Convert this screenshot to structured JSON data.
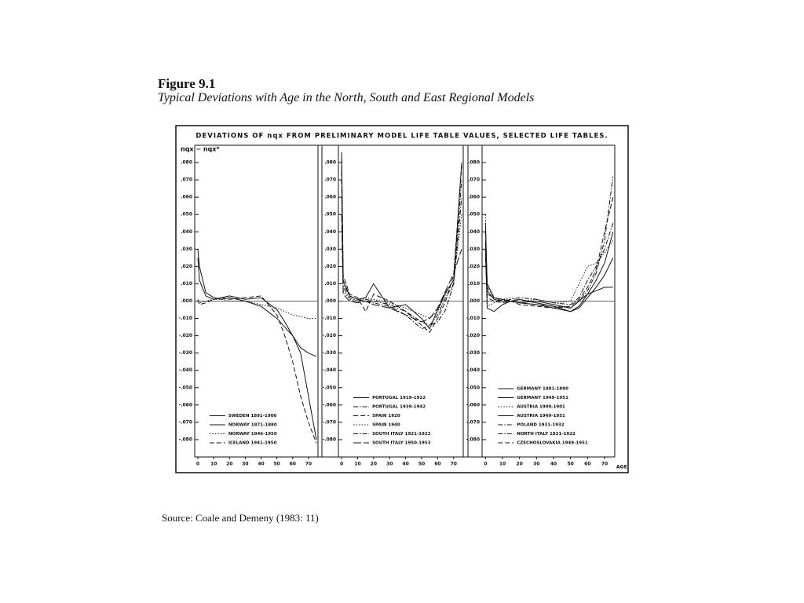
{
  "header": {
    "figure": "Figure 9.1",
    "caption": "Typical Deviations with Age in the North, South and East Regional Models"
  },
  "source": "Source:  Coale and Demeny (1983: 11)",
  "chart_data": [
    {
      "type": "line",
      "title": "DEVIATIONS OF nqx FROM PRELIMINARY MODEL LIFE TABLE VALUES, SELECTED LIFE TABLES.",
      "y_label": "nqx − nqx*",
      "x": [
        0,
        1,
        5,
        10,
        15,
        20,
        30,
        40,
        50,
        55,
        60,
        65,
        70,
        75
      ],
      "xlim": [
        -2,
        76
      ],
      "xticks": [
        0,
        10,
        20,
        30,
        40,
        50,
        60,
        70
      ],
      "ylim": [
        -0.09,
        0.09
      ],
      "yticks": [
        {
          "value": 0.08,
          "label": ".080"
        },
        {
          "value": 0.07,
          "label": ".070"
        },
        {
          "value": 0.06,
          "label": ".060"
        },
        {
          "value": 0.05,
          "label": ".050"
        },
        {
          "value": 0.04,
          "label": ".040"
        },
        {
          "value": 0.03,
          "label": ".030"
        },
        {
          "value": 0.02,
          "label": ".020"
        },
        {
          "value": 0.01,
          "label": ".010"
        },
        {
          "value": 0,
          "label": ".000"
        },
        {
          "value": -0.01,
          "label": "-.010"
        },
        {
          "value": -0.02,
          "label": "-.020"
        },
        {
          "value": -0.03,
          "label": "-.030"
        },
        {
          "value": -0.04,
          "label": "-.040"
        },
        {
          "value": -0.05,
          "label": "-.050"
        },
        {
          "value": -0.06,
          "label": "-.060"
        },
        {
          "value": -0.07,
          "label": "-.070"
        },
        {
          "value": -0.08,
          "label": "-.080"
        }
      ],
      "legend": "lower center",
      "series": [
        {
          "name": "SWEDEN 1891-1900",
          "color": "#111",
          "dash": "solid",
          "values": [
            0.03,
            0.02,
            0.005,
            0.002,
            0.001,
            0.002,
            0.0,
            -0.003,
            -0.01,
            -0.015,
            -0.02,
            -0.027,
            -0.03,
            -0.032
          ]
        },
        {
          "name": "NORWAY 1871-1880",
          "color": "#111",
          "dash": "solid",
          "values": [
            0.025,
            0.012,
            0.003,
            0.001,
            0.002,
            0.003,
            0.001,
            0.002,
            -0.005,
            -0.012,
            -0.02,
            -0.03,
            -0.055,
            -0.08
          ]
        },
        {
          "name": "NORWAY 1946-1950",
          "color": "#111",
          "dash": "dotted",
          "values": [
            0.0,
            -0.001,
            0.0,
            0.001,
            0.001,
            0.0,
            0.0,
            -0.002,
            -0.004,
            -0.006,
            -0.008,
            -0.009,
            -0.01,
            -0.01
          ]
        },
        {
          "name": "ICELAND 1941-1950",
          "color": "#111",
          "dash": "dashed",
          "values": [
            0.001,
            -0.002,
            -0.001,
            0.001,
            0.002,
            0.001,
            0.002,
            0.003,
            -0.008,
            -0.02,
            -0.035,
            -0.055,
            -0.07,
            -0.082
          ]
        }
      ]
    },
    {
      "type": "line",
      "x": [
        0,
        1,
        5,
        10,
        15,
        20,
        30,
        40,
        50,
        55,
        60,
        65,
        70,
        75
      ],
      "xlim": [
        -2,
        76
      ],
      "xticks": [
        0,
        10,
        20,
        30,
        40,
        50,
        60,
        70
      ],
      "ylim": [
        -0.09,
        0.09
      ],
      "yticks": [
        {
          "value": 0.08,
          "label": ".080"
        },
        {
          "value": 0.07,
          "label": ".070"
        },
        {
          "value": 0.06,
          "label": ".060"
        },
        {
          "value": 0.05,
          "label": ".050"
        },
        {
          "value": 0.04,
          "label": ".040"
        },
        {
          "value": 0.03,
          "label": ".030"
        },
        {
          "value": 0.02,
          "label": ".020"
        },
        {
          "value": 0.01,
          "label": ".010"
        },
        {
          "value": 0,
          "label": ".000"
        },
        {
          "value": -0.01,
          "label": "-.010"
        },
        {
          "value": -0.02,
          "label": "-.020"
        },
        {
          "value": -0.03,
          "label": "-.030"
        },
        {
          "value": -0.04,
          "label": "-.040"
        },
        {
          "value": -0.05,
          "label": "-.050"
        },
        {
          "value": -0.06,
          "label": "-.060"
        },
        {
          "value": -0.07,
          "label": "-.070"
        },
        {
          "value": -0.08,
          "label": "-.080"
        }
      ],
      "legend": "lower center",
      "series": [
        {
          "name": "PORTUGAL 1919-1922",
          "color": "#111",
          "dash": "solid",
          "values": [
            0.086,
            0.012,
            0.003,
            0.001,
            0.002,
            0.01,
            -0.004,
            -0.002,
            -0.01,
            -0.016,
            -0.005,
            0.005,
            0.012,
            0.08
          ]
        },
        {
          "name": "PORTUGAL 1939-1942",
          "color": "#111",
          "dash": "dashdot",
          "values": [
            0.075,
            0.008,
            0.002,
            0.0,
            0.001,
            0.0,
            -0.002,
            -0.006,
            -0.012,
            -0.014,
            -0.012,
            -0.005,
            0.01,
            0.07
          ]
        },
        {
          "name": "SPAIN 1920",
          "color": "#111",
          "dash": "dashed",
          "values": [
            0.082,
            0.015,
            0.004,
            0.002,
            -0.006,
            0.004,
            0.0,
            -0.006,
            -0.014,
            -0.018,
            -0.01,
            0.0,
            0.015,
            0.078
          ]
        },
        {
          "name": "SPAIN 1940",
          "color": "#111",
          "dash": "dotted",
          "values": [
            0.06,
            0.006,
            0.001,
            0.0,
            0.002,
            0.001,
            -0.001,
            -0.004,
            -0.008,
            -0.01,
            -0.006,
            0.004,
            0.012,
            0.05
          ]
        },
        {
          "name": "SOUTH ITALY 1921-1922",
          "color": "#111",
          "dash": "dashdot",
          "values": [
            0.07,
            0.01,
            0.003,
            0.001,
            0.0,
            -0.001,
            -0.003,
            -0.008,
            -0.016,
            -0.014,
            -0.008,
            0.002,
            0.01,
            0.06
          ]
        },
        {
          "name": "SOUTH ITALY 1950-1953",
          "color": "#111",
          "dash": "longdash",
          "values": [
            0.05,
            0.004,
            0.0,
            -0.001,
            0.0,
            -0.002,
            -0.004,
            -0.008,
            -0.012,
            -0.01,
            -0.004,
            0.006,
            0.016,
            0.03
          ]
        }
      ]
    },
    {
      "type": "line",
      "x_label": "AGE",
      "x": [
        0,
        1,
        5,
        10,
        15,
        20,
        30,
        40,
        50,
        55,
        60,
        65,
        70,
        75
      ],
      "xlim": [
        -2,
        76
      ],
      "xticks": [
        0,
        10,
        20,
        30,
        40,
        50,
        60,
        70
      ],
      "ylim": [
        -0.09,
        0.09
      ],
      "yticks": [
        {
          "value": 0.08,
          "label": ".080"
        },
        {
          "value": 0.07,
          "label": ".070"
        },
        {
          "value": 0.06,
          "label": ".060"
        },
        {
          "value": 0.05,
          "label": ".050"
        },
        {
          "value": 0.04,
          "label": ".040"
        },
        {
          "value": 0.03,
          "label": ".030"
        },
        {
          "value": 0.02,
          "label": ".020"
        },
        {
          "value": 0.01,
          "label": ".010"
        },
        {
          "value": 0,
          "label": ".000"
        },
        {
          "value": -0.01,
          "label": "-.010"
        },
        {
          "value": -0.02,
          "label": "-.020"
        },
        {
          "value": -0.03,
          "label": "-.030"
        },
        {
          "value": -0.04,
          "label": "-.040"
        },
        {
          "value": -0.05,
          "label": "-.050"
        },
        {
          "value": -0.06,
          "label": "-.060"
        },
        {
          "value": -0.07,
          "label": "-.070"
        },
        {
          "value": -0.08,
          "label": "-.080"
        }
      ],
      "legend": "lower center",
      "series": [
        {
          "name": "GERMANY 1881-1890",
          "color": "#111",
          "dash": "solid",
          "values": [
            0.045,
            0.01,
            0.002,
            0.001,
            0.0,
            0.001,
            -0.001,
            -0.003,
            -0.006,
            -0.004,
            0.002,
            0.008,
            0.015,
            0.025
          ]
        },
        {
          "name": "GERMANY 1949-1951",
          "color": "#111",
          "dash": "solid",
          "values": [
            0.03,
            -0.004,
            -0.006,
            -0.002,
            0.0,
            -0.001,
            -0.002,
            -0.004,
            -0.006,
            -0.003,
            0.004,
            0.012,
            0.022,
            0.04
          ]
        },
        {
          "name": "AUSTRIA 1900-1901",
          "color": "#111",
          "dash": "dotted",
          "values": [
            0.05,
            -0.003,
            -0.001,
            0.001,
            0.002,
            0.0,
            0.001,
            -0.001,
            0.0,
            0.01,
            0.02,
            0.022,
            0.028,
            0.035
          ]
        },
        {
          "name": "AUSTRIA 1949-1951",
          "color": "#111",
          "dash": "solid",
          "values": [
            0.035,
            0.006,
            0.001,
            0.0,
            0.0,
            -0.001,
            0.0,
            -0.002,
            -0.004,
            0.0,
            0.004,
            0.006,
            0.008,
            0.008
          ]
        },
        {
          "name": "POLAND 1931-1932",
          "color": "#111",
          "dash": "dashdot",
          "values": [
            0.04,
            0.008,
            0.002,
            0.0,
            0.001,
            0.002,
            0.001,
            -0.001,
            -0.002,
            0.002,
            0.012,
            0.02,
            0.03,
            0.045
          ]
        },
        {
          "name": "NORTH ITALY 1921-1922",
          "color": "#111",
          "dash": "dashdot",
          "values": [
            0.03,
            0.004,
            0.002,
            0.001,
            0.0,
            -0.001,
            -0.002,
            -0.003,
            -0.004,
            0.0,
            0.006,
            0.016,
            0.035,
            0.072
          ]
        },
        {
          "name": "CZECHOSLOVAKIA 1949-1951",
          "color": "#111",
          "dash": "dashed",
          "values": [
            0.025,
            0.002,
            0.0,
            -0.001,
            0.0,
            -0.002,
            -0.003,
            -0.004,
            -0.003,
            0.001,
            0.008,
            0.018,
            0.04,
            0.06
          ]
        }
      ]
    }
  ]
}
